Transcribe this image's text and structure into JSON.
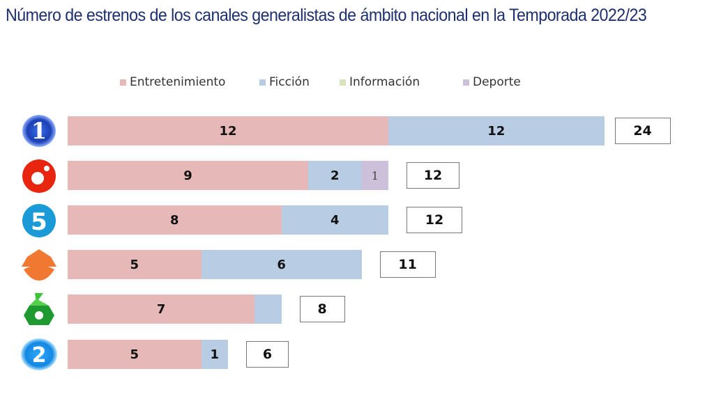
{
  "title": "Número de estrenos de los canales generalistas de ámbito nacional en la Temporada 2022/23",
  "chart_data": {
    "type": "bar",
    "orientation": "horizontal",
    "stacked": true,
    "categories": [
      "la1-logo",
      "cuatro-logo",
      "telecinco-logo",
      "antena3-logo",
      "lasexta-logo",
      "la2-logo"
    ],
    "series": [
      {
        "name": "Entretenimiento",
        "color": "#e6b8b7",
        "values": [
          12,
          9,
          8,
          5,
          7,
          5
        ]
      },
      {
        "name": "Ficción",
        "color": "#b8cce4",
        "values": [
          12,
          2,
          4,
          6,
          1,
          1
        ]
      },
      {
        "name": "Información",
        "color": "#d8e4bc",
        "values": [
          0,
          0,
          0,
          0,
          0,
          0
        ]
      },
      {
        "name": "Deporte",
        "color": "#ccc0da",
        "values": [
          0,
          1,
          0,
          0,
          0,
          0
        ]
      }
    ],
    "data_labels": [
      [
        "12",
        "12",
        null,
        null
      ],
      [
        "9",
        "2",
        null,
        "1"
      ],
      [
        "8",
        "4",
        null,
        null
      ],
      [
        "5",
        "6",
        null,
        null
      ],
      [
        "7",
        null,
        null,
        null
      ],
      [
        "5",
        "1",
        null,
        null
      ]
    ],
    "totals": [
      "24",
      "12",
      "12",
      "11",
      "8",
      "6"
    ],
    "legend_position": "top",
    "grid": false,
    "axes_visible": false
  }
}
